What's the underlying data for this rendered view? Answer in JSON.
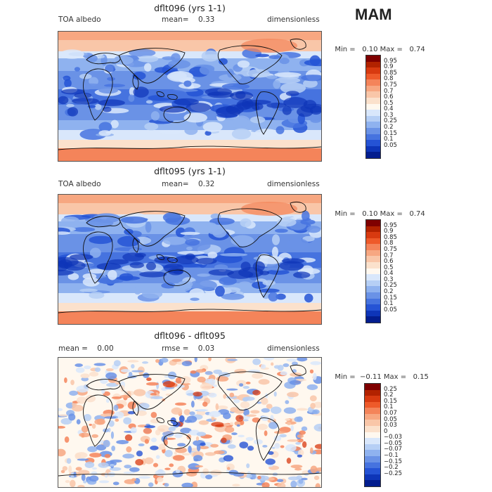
{
  "season": "MAM",
  "panels": [
    {
      "title": "dflt096 (yrs 1-1)",
      "left_label": "TOA albedo",
      "center_label": "mean=",
      "center_value": "0.33",
      "right_label": "dimensionless",
      "min_label": "Min =",
      "min_value": "0.10",
      "max_label": "Max =",
      "max_value": "0.74",
      "colorbar": {
        "ticks": [
          "0.95",
          "0.9",
          "0.85",
          "0.8",
          "0.75",
          "0.7",
          "0.6",
          "0.5",
          "0.4",
          "0.3",
          "0.25",
          "0.2",
          "0.15",
          "0.1",
          "0.05"
        ],
        "colors": [
          "#7f0000",
          "#b22200",
          "#d83a10",
          "#ee5a2a",
          "#f4845a",
          "#f7a781",
          "#f9c6a8",
          "#fbe1cc",
          "#fff8ef",
          "#d9e7fb",
          "#b6cff5",
          "#8fb2ef",
          "#6a92e6",
          "#4673df",
          "#2553d5",
          "#0e35b8",
          "#031d8e"
        ]
      }
    },
    {
      "title": "dflt095 (yrs 1-1)",
      "left_label": "TOA albedo",
      "center_label": "mean=",
      "center_value": "0.32",
      "right_label": "dimensionless",
      "min_label": "Min =",
      "min_value": "0.10",
      "max_label": "Max =",
      "max_value": "0.74",
      "colorbar": {
        "ticks": [
          "0.95",
          "0.9",
          "0.85",
          "0.8",
          "0.75",
          "0.7",
          "0.6",
          "0.5",
          "0.4",
          "0.3",
          "0.25",
          "0.2",
          "0.15",
          "0.1",
          "0.05"
        ],
        "colors": [
          "#7f0000",
          "#b22200",
          "#d83a10",
          "#ee5a2a",
          "#f4845a",
          "#f7a781",
          "#f9c6a8",
          "#fbe1cc",
          "#fff8ef",
          "#d9e7fb",
          "#b6cff5",
          "#8fb2ef",
          "#6a92e6",
          "#4673df",
          "#2553d5",
          "#0e35b8",
          "#031d8e"
        ]
      }
    },
    {
      "title": "dflt096 - dflt095",
      "left_label": "mean =",
      "left_value": "0.00",
      "center_label": "rmse =",
      "center_value": "0.03",
      "right_label": "dimensionless",
      "min_label": "Min =",
      "min_value": "−0.11",
      "max_label": "Max =",
      "max_value": "0.15",
      "colorbar": {
        "ticks": [
          "0.25",
          "0.2",
          "0.15",
          "0.1",
          "0.07",
          "0.05",
          "0.03",
          "0",
          "−0.03",
          "−0.05",
          "−0.07",
          "−0.1",
          "−0.15",
          "−0.2",
          "−0.25"
        ],
        "colors": [
          "#7f0000",
          "#b22200",
          "#d83a10",
          "#ee5a2a",
          "#f4845a",
          "#f7a781",
          "#f9c6a8",
          "#fbe1cc",
          "#fff8ef",
          "#d9e7fb",
          "#b6cff5",
          "#8fb2ef",
          "#6a92e6",
          "#4673df",
          "#2553d5",
          "#0e35b8",
          "#031d8e"
        ]
      }
    }
  ]
}
